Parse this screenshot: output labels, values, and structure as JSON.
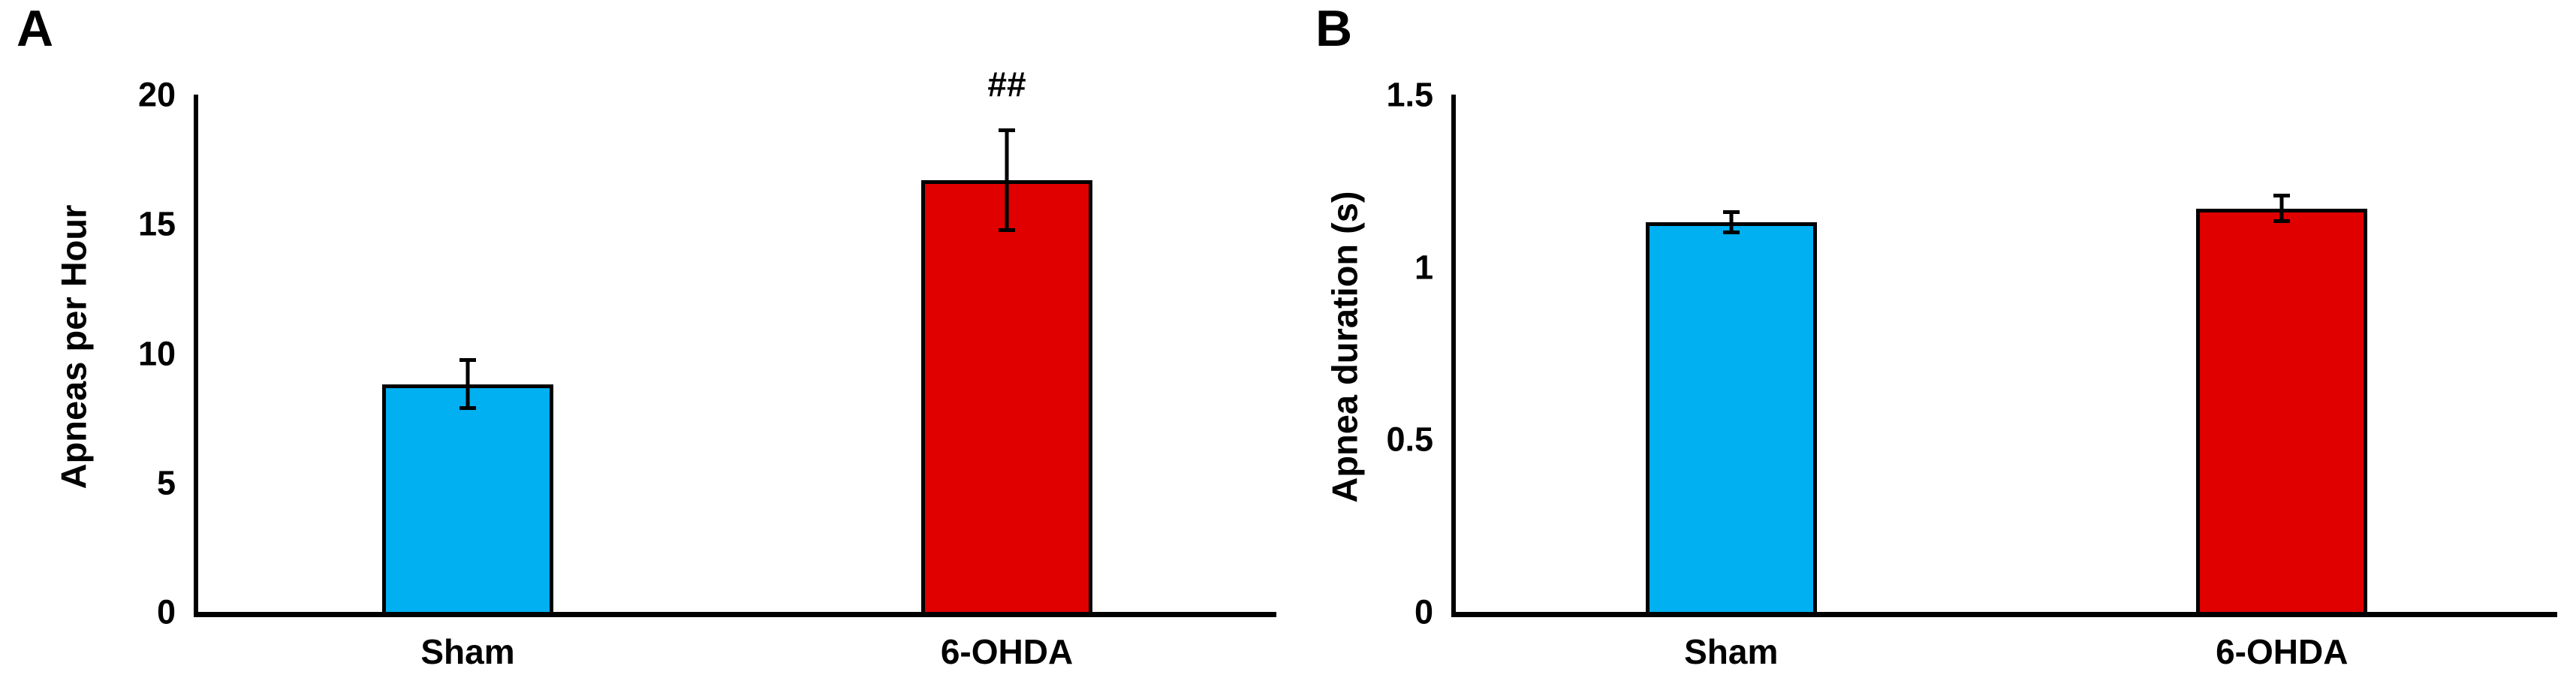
{
  "figure": {
    "background_color": "#ffffff",
    "text_color": "#000000",
    "axis_color": "#000000"
  },
  "chart_data": [
    {
      "type": "bar",
      "panel_label": "A",
      "title": "",
      "xlabel": "",
      "ylabel": "Apneas per Hour",
      "categories": [
        "Sham",
        "6-OHDA"
      ],
      "values": [
        8.8,
        16.7
      ],
      "errors": [
        1.0,
        2.0
      ],
      "bar_colors": [
        "#00B0F0",
        "#E00000"
      ],
      "annotations": [
        "",
        "##"
      ],
      "ylim": [
        0,
        20
      ],
      "yticks": [
        0,
        5,
        10,
        15,
        20
      ],
      "ytick_labels": [
        "0",
        "5",
        "10",
        "15",
        "20"
      ],
      "grid": false,
      "legend": "none"
    },
    {
      "type": "bar",
      "panel_label": "B",
      "title": "",
      "xlabel": "",
      "ylabel": "Apnea duration (s)",
      "categories": [
        "Sham",
        "6-OHDA"
      ],
      "values": [
        1.13,
        1.17
      ],
      "errors": [
        0.035,
        0.042
      ],
      "bar_colors": [
        "#00B0F0",
        "#E00000"
      ],
      "annotations": [
        "",
        ""
      ],
      "ylim": [
        0,
        1.5
      ],
      "yticks": [
        0,
        0.5,
        1,
        1.5
      ],
      "ytick_labels": [
        "0",
        "0.5",
        "1",
        "1.5"
      ],
      "grid": false,
      "legend": "none"
    }
  ]
}
